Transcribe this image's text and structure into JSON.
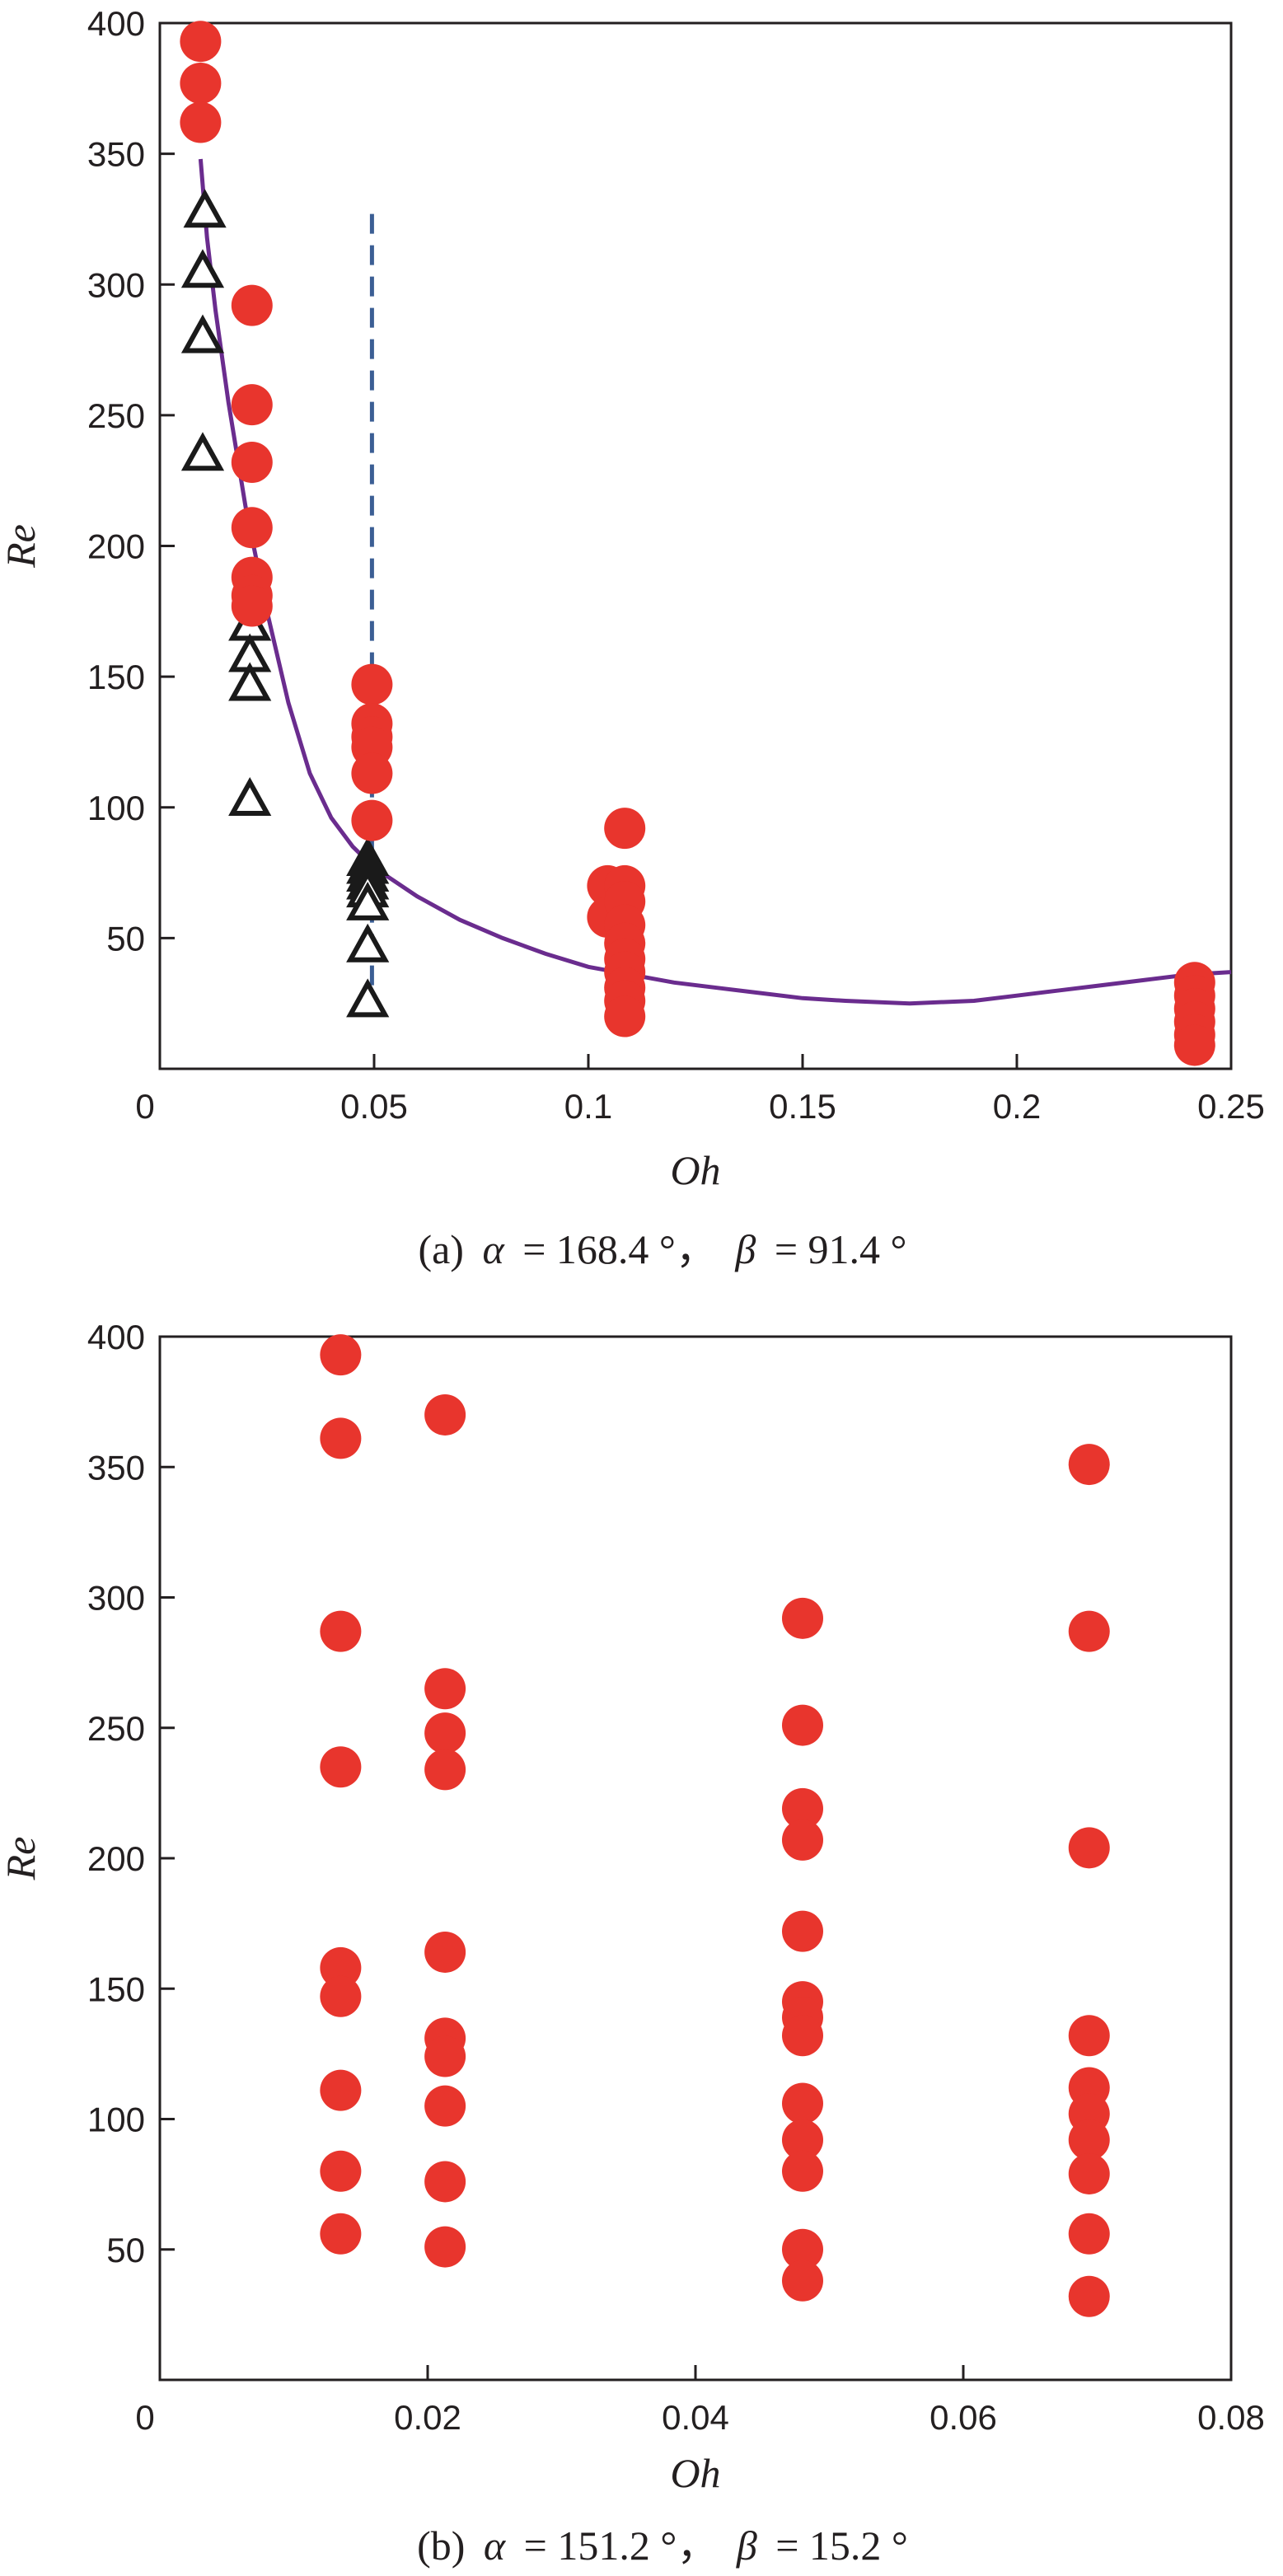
{
  "colors": {
    "marker_red": "#e8352d",
    "triangle": "#1a1a1a",
    "curve": "#6a2c8e",
    "dashed": "#3b5e94",
    "axis": "#231f20"
  },
  "chart_data": [
    {
      "type": "scatter",
      "panel": "a",
      "xlabel": "Oh",
      "ylabel": "Re",
      "caption": {
        "prefix": "(a)",
        "alpha_symbol": "α",
        "alpha_value": "= 168.4 °，",
        "beta_symbol": "β",
        "beta_value": "= 91.4 °"
      },
      "xlim": [
        0,
        0.25
      ],
      "ylim": [
        0,
        400
      ],
      "xticks": [
        0,
        0.05,
        0.1,
        0.15,
        0.2,
        0.25
      ],
      "xtick_labels": [
        "0",
        "0.05",
        "0.1",
        "0.15",
        "0.2",
        "0.25"
      ],
      "yticks": [
        50,
        100,
        150,
        200,
        250,
        300,
        350,
        400
      ],
      "ytick_labels": [
        "50",
        "100",
        "150",
        "200",
        "250",
        "300",
        "350",
        "400"
      ],
      "circles": [
        [
          0.0095,
          393
        ],
        [
          0.0095,
          377
        ],
        [
          0.0095,
          362
        ],
        [
          0.0215,
          292
        ],
        [
          0.0215,
          254
        ],
        [
          0.0215,
          232
        ],
        [
          0.0215,
          207
        ],
        [
          0.0215,
          188
        ],
        [
          0.0215,
          181
        ],
        [
          0.0215,
          177
        ],
        [
          0.0495,
          147
        ],
        [
          0.0495,
          132
        ],
        [
          0.0495,
          127
        ],
        [
          0.0495,
          123
        ],
        [
          0.0495,
          113
        ],
        [
          0.0495,
          95
        ],
        [
          0.1045,
          70
        ],
        [
          0.1045,
          58
        ],
        [
          0.1085,
          92
        ],
        [
          0.1085,
          70
        ],
        [
          0.1085,
          64
        ],
        [
          0.1085,
          55
        ],
        [
          0.1085,
          48
        ],
        [
          0.1085,
          42
        ],
        [
          0.1085,
          37
        ],
        [
          0.1085,
          31
        ],
        [
          0.1085,
          26
        ],
        [
          0.1085,
          20
        ],
        [
          0.2415,
          33
        ],
        [
          0.2415,
          28
        ],
        [
          0.2415,
          23
        ],
        [
          0.2415,
          18
        ],
        [
          0.2415,
          13
        ],
        [
          0.2415,
          9
        ]
      ],
      "triangles": [
        [
          0.0105,
          328
        ],
        [
          0.01,
          305
        ],
        [
          0.01,
          280
        ],
        [
          0.01,
          235
        ],
        [
          0.021,
          170
        ],
        [
          0.021,
          158
        ],
        [
          0.021,
          147
        ],
        [
          0.021,
          103
        ],
        [
          0.0485,
          80
        ],
        [
          0.0485,
          77
        ],
        [
          0.0485,
          74
        ],
        [
          0.0485,
          71
        ],
        [
          0.0485,
          68
        ],
        [
          0.0485,
          63
        ],
        [
          0.0485,
          47
        ],
        [
          0.0485,
          26
        ]
      ],
      "curve": [
        [
          0.0095,
          348
        ],
        [
          0.011,
          318
        ],
        [
          0.013,
          290
        ],
        [
          0.016,
          255
        ],
        [
          0.02,
          215
        ],
        [
          0.025,
          175
        ],
        [
          0.03,
          140
        ],
        [
          0.035,
          113
        ],
        [
          0.04,
          96
        ],
        [
          0.045,
          85
        ],
        [
          0.05,
          77
        ],
        [
          0.06,
          66
        ],
        [
          0.07,
          57
        ],
        [
          0.08,
          50
        ],
        [
          0.09,
          44
        ],
        [
          0.1,
          39
        ],
        [
          0.11,
          36
        ],
        [
          0.12,
          33
        ],
        [
          0.13,
          31
        ],
        [
          0.14,
          29
        ],
        [
          0.15,
          27
        ],
        [
          0.16,
          26
        ],
        [
          0.175,
          25
        ],
        [
          0.19,
          26
        ],
        [
          0.2,
          28
        ],
        [
          0.21,
          30
        ],
        [
          0.22,
          32
        ],
        [
          0.23,
          34
        ],
        [
          0.24,
          36
        ],
        [
          0.25,
          37
        ]
      ],
      "vline": {
        "x": 0.0495,
        "y_from": 20,
        "y_to": 327
      }
    },
    {
      "type": "scatter",
      "panel": "b",
      "xlabel": "Oh",
      "ylabel": "Re",
      "caption": {
        "prefix": "(b)",
        "alpha_symbol": "α",
        "alpha_value": "= 151.2 °，",
        "beta_symbol": "β",
        "beta_value": "= 15.2 °"
      },
      "xlim": [
        0,
        0.08
      ],
      "ylim": [
        0,
        400
      ],
      "xticks": [
        0,
        0.02,
        0.04,
        0.06,
        0.08
      ],
      "xtick_labels": [
        "0",
        "0.02",
        "0.04",
        "0.06",
        "0.08"
      ],
      "yticks": [
        50,
        100,
        150,
        200,
        250,
        300,
        350,
        400
      ],
      "ytick_labels": [
        "50",
        "100",
        "150",
        "200",
        "250",
        "300",
        "350",
        "400"
      ],
      "circles": [
        [
          0.0135,
          393
        ],
        [
          0.0135,
          361
        ],
        [
          0.0135,
          287
        ],
        [
          0.0135,
          235
        ],
        [
          0.0135,
          158
        ],
        [
          0.0135,
          147
        ],
        [
          0.0135,
          111
        ],
        [
          0.0135,
          80
        ],
        [
          0.0135,
          56
        ],
        [
          0.0213,
          370
        ],
        [
          0.0213,
          265
        ],
        [
          0.0213,
          248
        ],
        [
          0.0213,
          234
        ],
        [
          0.0213,
          164
        ],
        [
          0.0213,
          131
        ],
        [
          0.0213,
          124
        ],
        [
          0.0213,
          105
        ],
        [
          0.0213,
          76
        ],
        [
          0.0213,
          51
        ],
        [
          0.048,
          292
        ],
        [
          0.048,
          251
        ],
        [
          0.048,
          219
        ],
        [
          0.048,
          207
        ],
        [
          0.048,
          172
        ],
        [
          0.048,
          145
        ],
        [
          0.048,
          139
        ],
        [
          0.048,
          132
        ],
        [
          0.048,
          106
        ],
        [
          0.048,
          92
        ],
        [
          0.048,
          80
        ],
        [
          0.048,
          50
        ],
        [
          0.048,
          38
        ],
        [
          0.0694,
          351
        ],
        [
          0.0694,
          287
        ],
        [
          0.0694,
          204
        ],
        [
          0.0694,
          132
        ],
        [
          0.0694,
          112
        ],
        [
          0.0694,
          102
        ],
        [
          0.0694,
          92
        ],
        [
          0.0694,
          79
        ],
        [
          0.0694,
          56
        ],
        [
          0.0694,
          32
        ]
      ]
    }
  ]
}
